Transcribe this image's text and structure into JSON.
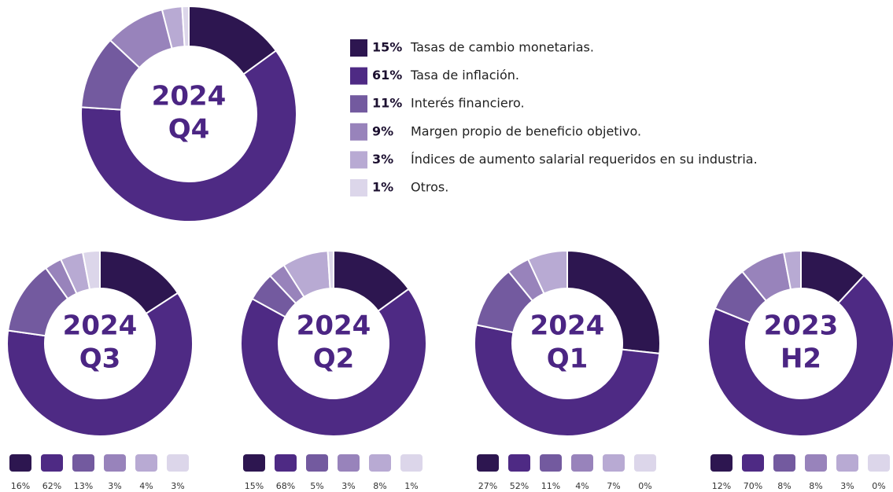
{
  "chart_data": [
    {
      "type": "donut",
      "title": "2024",
      "subtitle": "Q4",
      "categories": [
        "Tasas de cambio monetarias.",
        "Tasa de inflación.",
        "Interés financiero.",
        "Margen propio de beneficio objetivo.",
        "Índices de aumento salarial requeridos en su industria.",
        "Otros."
      ],
      "values": [
        15,
        61,
        11,
        9,
        3,
        1
      ],
      "value_labels": [
        "15%",
        "61%",
        "11%",
        "9%",
        "3%",
        "1%"
      ],
      "colors": [
        "#2d1650",
        "#4e2a84",
        "#735a9f",
        "#9883bb",
        "#b8aad3",
        "#dcd6ea"
      ]
    },
    {
      "type": "donut",
      "title": "2024",
      "subtitle": "Q3",
      "values": [
        16,
        62,
        13,
        3,
        4,
        3
      ],
      "value_labels": [
        "16%",
        "62%",
        "13%",
        "3%",
        "4%",
        "3%"
      ],
      "colors": [
        "#2d1650",
        "#4e2a84",
        "#735a9f",
        "#9883bb",
        "#b8aad3",
        "#dcd6ea"
      ]
    },
    {
      "type": "donut",
      "title": "2024",
      "subtitle": "Q2",
      "values": [
        15,
        68,
        5,
        3,
        8,
        1
      ],
      "value_labels": [
        "15%",
        "68%",
        "5%",
        "3%",
        "8%",
        "1%"
      ],
      "colors": [
        "#2d1650",
        "#4e2a84",
        "#735a9f",
        "#9883bb",
        "#b8aad3",
        "#dcd6ea"
      ]
    },
    {
      "type": "donut",
      "title": "2024",
      "subtitle": "Q1",
      "values": [
        27,
        52,
        11,
        4,
        7,
        0
      ],
      "value_labels": [
        "27%",
        "52%",
        "11%",
        "4%",
        "7%",
        "0%"
      ],
      "colors": [
        "#2d1650",
        "#4e2a84",
        "#735a9f",
        "#9883bb",
        "#b8aad3",
        "#dcd6ea"
      ]
    },
    {
      "type": "donut",
      "title": "2023",
      "subtitle": "H2",
      "values": [
        12,
        70,
        8,
        8,
        3,
        0
      ],
      "value_labels": [
        "12%",
        "70%",
        "8%",
        "8%",
        "3%",
        "0%"
      ],
      "colors": [
        "#2d1650",
        "#4e2a84",
        "#735a9f",
        "#9883bb",
        "#b8aad3",
        "#dcd6ea"
      ]
    }
  ]
}
